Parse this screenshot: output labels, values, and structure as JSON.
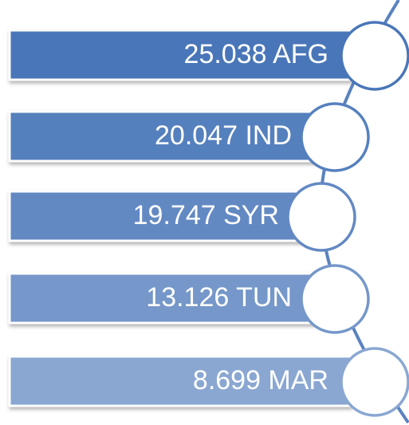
{
  "items": [
    {
      "label": "25.038 AFG"
    },
    {
      "label": "20.047 IND"
    },
    {
      "label": "19.747 SYR"
    },
    {
      "label": "13.126 TUN"
    },
    {
      "label": "8.699 MAR"
    }
  ]
}
